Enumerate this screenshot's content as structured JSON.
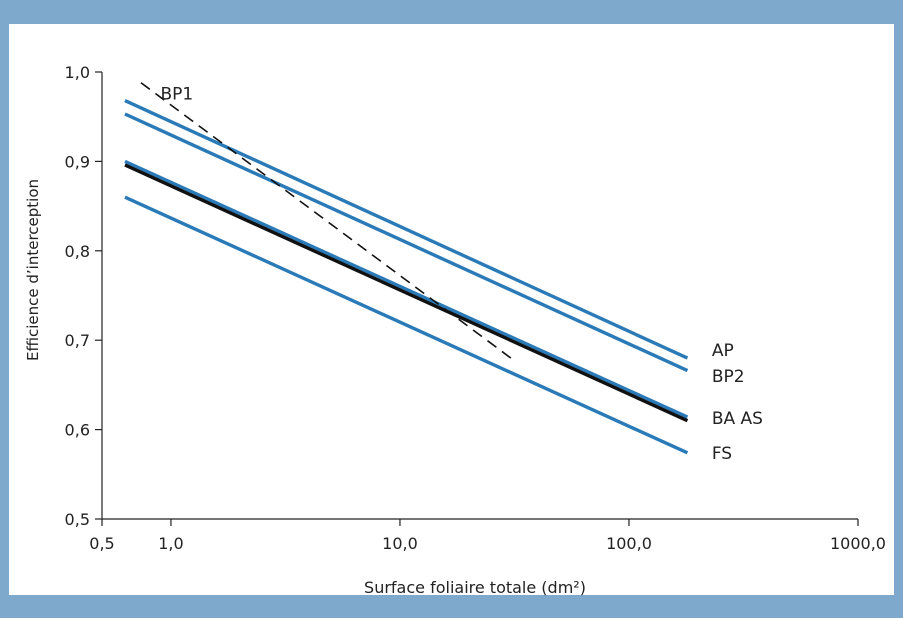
{
  "chart_data": {
    "type": "line",
    "xlabel": "Surface foliaire totale (dm²)",
    "ylabel": "Efficience d’interception",
    "x_scale": "log",
    "xlim": [
      0.5,
      1000
    ],
    "ylim": [
      0.5,
      1.0
    ],
    "x_ticks": [
      {
        "value": 0.5,
        "label": "0,5"
      },
      {
        "value": 1,
        "label": "1,0"
      },
      {
        "value": 10,
        "label": "10,0"
      },
      {
        "value": 100,
        "label": "100,0"
      },
      {
        "value": 1000,
        "label": "1000,0"
      }
    ],
    "y_ticks": [
      {
        "value": 0.5,
        "label": "0,5"
      },
      {
        "value": 0.6,
        "label": "0,6"
      },
      {
        "value": 0.7,
        "label": "0,7"
      },
      {
        "value": 0.8,
        "label": "0,8"
      },
      {
        "value": 0.9,
        "label": "0,9"
      },
      {
        "value": 1.0,
        "label": "1,0"
      }
    ],
    "grid": false,
    "series": [
      {
        "name": "AP",
        "x": [
          0.63,
          180
        ],
        "y": [
          0.968,
          0.68
        ],
        "color": "#2a7ab8",
        "style": "solid"
      },
      {
        "name": "BP2",
        "x": [
          0.63,
          180
        ],
        "y": [
          0.953,
          0.666
        ],
        "color": "#2a7ab8",
        "style": "solid"
      },
      {
        "name": "BA",
        "x": [
          0.63,
          180
        ],
        "y": [
          0.9,
          0.614
        ],
        "color": "#2a7ab8",
        "style": "solid"
      },
      {
        "name": "AS",
        "x": [
          0.63,
          180
        ],
        "y": [
          0.896,
          0.61
        ],
        "color": "#111111",
        "style": "solid"
      },
      {
        "name": "FS",
        "x": [
          0.63,
          180
        ],
        "y": [
          0.86,
          0.574
        ],
        "color": "#2a7ab8",
        "style": "solid"
      },
      {
        "name": "BP1",
        "x": [
          0.74,
          32
        ],
        "y": [
          0.988,
          0.676
        ],
        "color": "#111111",
        "style": "dashed"
      }
    ],
    "annotations": [
      {
        "text": "BP1",
        "x": 0.9,
        "y": 0.976,
        "anchor": "start"
      },
      {
        "text": "AP",
        "x": 230,
        "y": 0.689,
        "anchor": "start"
      },
      {
        "text": "BP2",
        "x": 230,
        "y": 0.66,
        "anchor": "start"
      },
      {
        "text": "BA AS",
        "x": 230,
        "y": 0.613,
        "anchor": "start"
      },
      {
        "text": "FS",
        "x": 230,
        "y": 0.574,
        "anchor": "start"
      }
    ]
  }
}
